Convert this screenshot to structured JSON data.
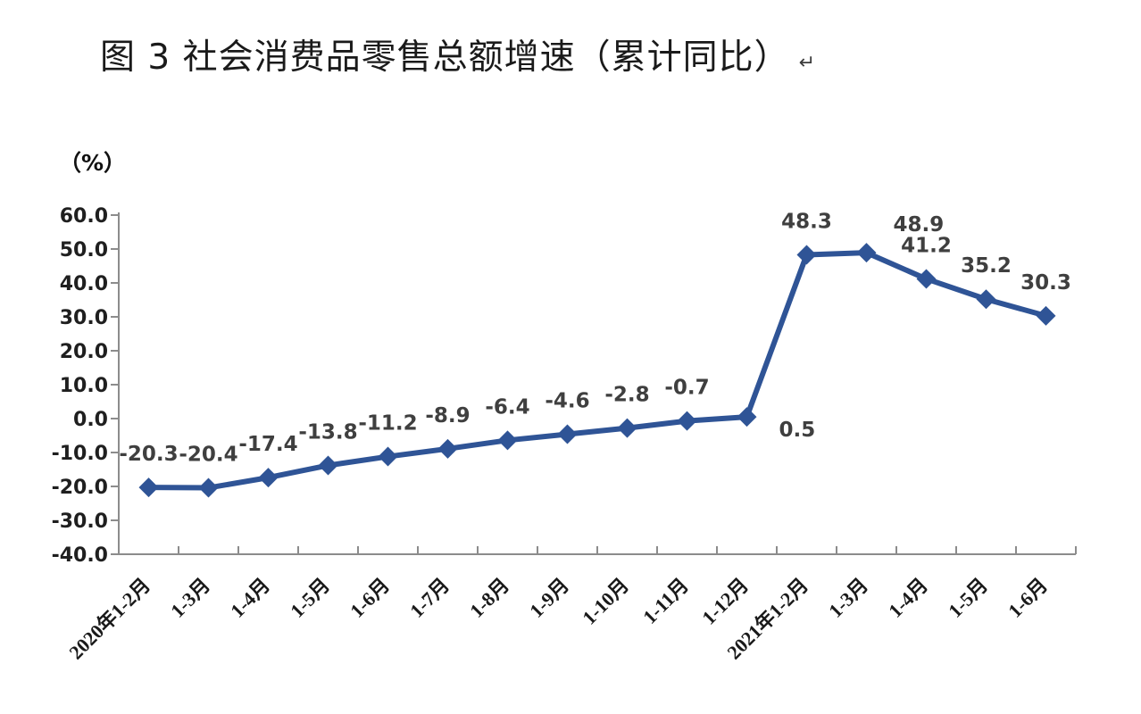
{
  "figure": {
    "title": "图 3  社会消费品零售总额增速（累计同比）",
    "paragraph_mark": "↵"
  },
  "chart_data": {
    "type": "line",
    "title": "图 3  社会消费品零售总额增速（累计同比）",
    "unit_label": "（%）",
    "categories": [
      "2020年1-2月",
      "1-3月",
      "1-4月",
      "1-5月",
      "1-6月",
      "1-7月",
      "1-8月",
      "1-9月",
      "1-10月",
      "1-11月",
      "1-12月",
      "2021年1-2月",
      "1-3月",
      "1-4月",
      "1-5月",
      "1-6月"
    ],
    "values": [
      -20.3,
      -20.4,
      -17.4,
      -13.8,
      -11.2,
      -8.9,
      -6.4,
      -4.6,
      -2.8,
      -0.7,
      0.5,
      48.3,
      48.9,
      41.2,
      35.2,
      30.3
    ],
    "data_labels": [
      "-20.3",
      "-20.4",
      "-17.4",
      "-13.8",
      "-11.2",
      "-8.9",
      "-6.4",
      "-4.6",
      "-2.8",
      "-0.7",
      "0.5",
      "48.3",
      "48.9",
      "41.2",
      "35.2",
      "30.3"
    ],
    "ylim": [
      -40,
      60
    ],
    "ytick_step": 10,
    "ytick_labels": [
      "60.0",
      "50.0",
      "40.0",
      "30.0",
      "20.0",
      "10.0",
      "0.0",
      "-10.0",
      "-20.0",
      "-30.0",
      "-40.0"
    ],
    "xlabel": "",
    "ylabel": "（%）",
    "grid": false,
    "legend": "none",
    "line_color": "#2F5496",
    "marker": "diamond",
    "marker_color": "#2F5496",
    "data_label_color": "#3F3F3F",
    "axis_color": "#8C8C8C",
    "tick_position": "x-inside-y-outside"
  }
}
